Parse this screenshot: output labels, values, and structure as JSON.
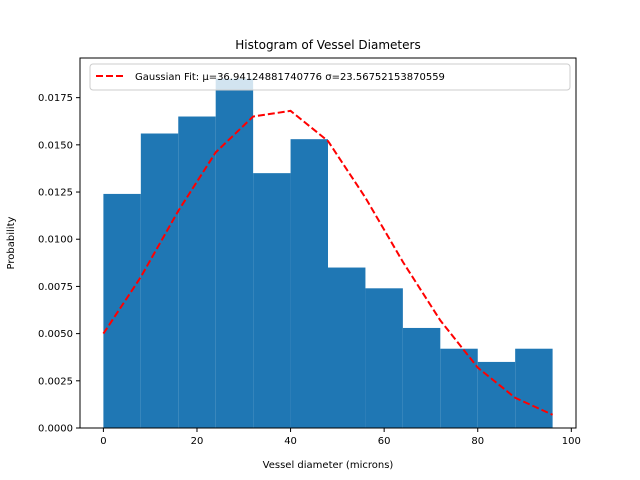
{
  "chart_data": {
    "type": "bar",
    "title": "Histogram of Vessel Diameters",
    "xlabel": "Vessel diameter (microns)",
    "ylabel": "Probability",
    "xlim": [
      -5,
      101
    ],
    "ylim": [
      0,
      0.0196
    ],
    "bin_edges": [
      0,
      8,
      16,
      24,
      32,
      40,
      48,
      56,
      64,
      72,
      80,
      88,
      96
    ],
    "values": [
      0.0124,
      0.0156,
      0.0165,
      0.0185,
      0.0135,
      0.0153,
      0.0085,
      0.0074,
      0.0053,
      0.0042,
      0.0035,
      0.0042
    ],
    "bar_color": "#1f77b4",
    "fit_line": {
      "name": "Gaussian Fit: μ=36.94124881740776 σ=23.56752153870559",
      "color": "#ff0000",
      "x": [
        0,
        8,
        16,
        24,
        32,
        40,
        48,
        56,
        64,
        72,
        80,
        88,
        96
      ],
      "y": [
        0.005,
        0.008,
        0.0115,
        0.0146,
        0.0165,
        0.0168,
        0.0152,
        0.0122,
        0.0088,
        0.0057,
        0.0032,
        0.0016,
        0.0007
      ]
    },
    "x_ticks": [
      0,
      20,
      40,
      60,
      80,
      100
    ],
    "x_tick_labels": [
      "0",
      "20",
      "40",
      "60",
      "80",
      "100"
    ],
    "y_ticks": [
      0,
      0.0025,
      0.005,
      0.0075,
      0.01,
      0.0125,
      0.015,
      0.0175
    ],
    "y_tick_labels": [
      "0.0000",
      "0.0025",
      "0.0050",
      "0.0075",
      "0.0100",
      "0.0125",
      "0.0150",
      "0.0175"
    ],
    "legend_position": "top-right",
    "grid": false
  }
}
